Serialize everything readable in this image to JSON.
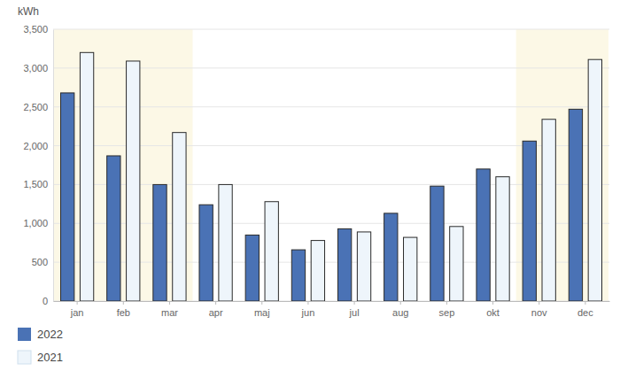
{
  "chart_data": {
    "type": "bar",
    "y_label": "kWh",
    "categories": [
      "jan",
      "feb",
      "mar",
      "apr",
      "maj",
      "jun",
      "jul",
      "aug",
      "sep",
      "okt",
      "nov",
      "dec"
    ],
    "series": [
      {
        "name": "2022",
        "color": "#4a72b5",
        "values": [
          2680,
          1870,
          1500,
          1240,
          850,
          660,
          930,
          1130,
          1480,
          1700,
          2060,
          2470
        ]
      },
      {
        "name": "2021",
        "color": "#eef5fb",
        "values": [
          3200,
          3090,
          2170,
          1500,
          1280,
          780,
          890,
          820,
          960,
          1600,
          2340,
          3110
        ]
      }
    ],
    "ylim": [
      0,
      3500
    ],
    "yticks": [
      0,
      500,
      {
        "value": 1000,
        "label": "1,000"
      },
      {
        "value": 1500,
        "label": "1,500"
      },
      {
        "value": 2000,
        "label": "2,000"
      },
      {
        "value": 2500,
        "label": "2,500"
      },
      {
        "value": 3000,
        "label": "3,000"
      },
      {
        "value": 3500,
        "label": "3,500"
      }
    ],
    "grid": true,
    "legend": "bottom-left"
  }
}
